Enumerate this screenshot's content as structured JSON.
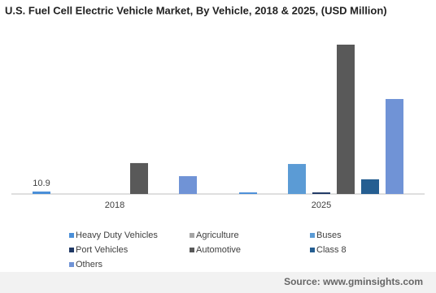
{
  "chart_data": {
    "type": "bar",
    "title": "U.S. Fuel Cell Electric Vehicle Market, By Vehicle, 2018 & 2025, (USD Million)",
    "categories": [
      "2018",
      "2025"
    ],
    "series": [
      {
        "name": "Heavy Duty Vehicles",
        "color": "#4a8fd8",
        "values": [
          10.9,
          7
        ],
        "value_labels": [
          "10.9",
          null
        ]
      },
      {
        "name": "Agriculture",
        "color": "#a5a5a5",
        "values": [
          null,
          null
        ]
      },
      {
        "name": "Buses",
        "color": "#5b9bd5",
        "values": [
          null,
          133
        ]
      },
      {
        "name": "Port Vehicles",
        "color": "#1f3864",
        "values": [
          null,
          7
        ]
      },
      {
        "name": "Automotive",
        "color": "#595959",
        "values": [
          137,
          662
        ]
      },
      {
        "name": "Class 8",
        "color": "#255e91",
        "values": [
          null,
          65
        ]
      },
      {
        "name": "Others",
        "color": "#7093d6",
        "values": [
          79,
          421
        ]
      }
    ],
    "source": "Source: www.gminsights.com"
  }
}
